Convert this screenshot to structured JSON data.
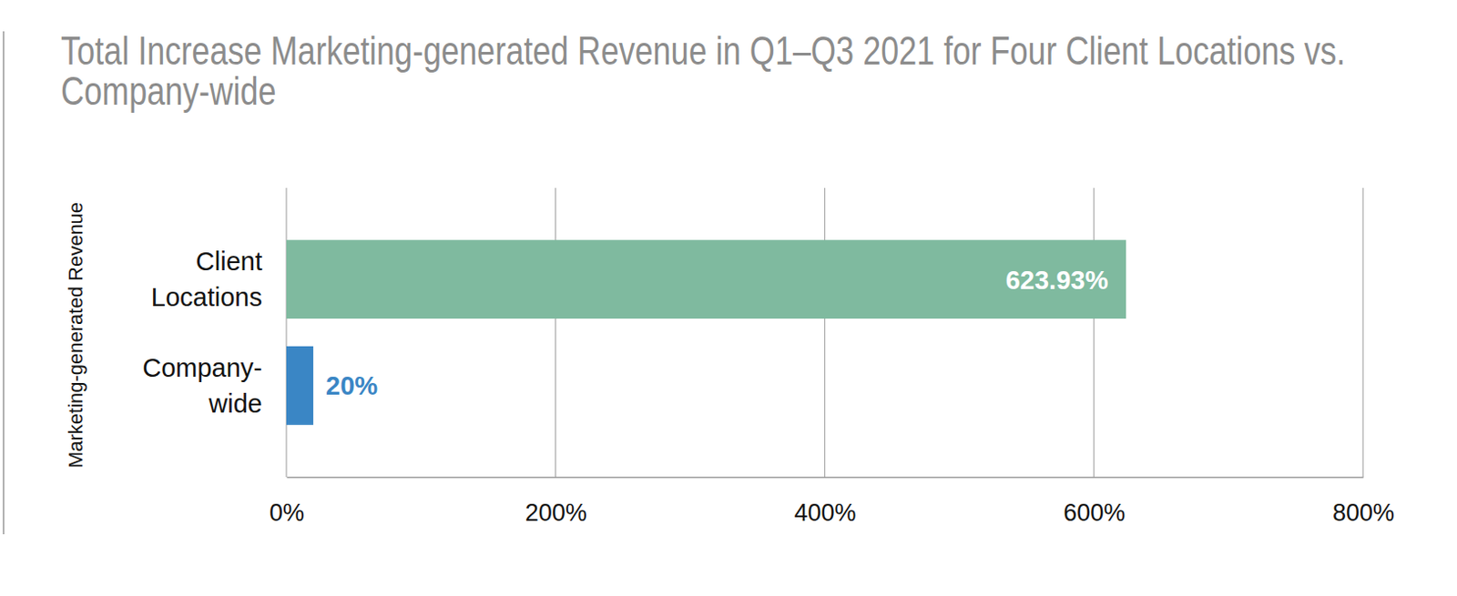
{
  "chart_data": {
    "type": "bar",
    "orientation": "horizontal",
    "title": "Total Increase Marketing-generated Revenue in Q1–Q3 2021 for Four Client Locations vs. Company-wide",
    "y_label": "Marketing-generated Revenue",
    "categories": [
      "Client Locations",
      "Company-wide"
    ],
    "values": [
      623.93,
      20
    ],
    "value_labels": [
      "623.93%",
      "20%"
    ],
    "colors": [
      "#7fba9f",
      "#3a86c5"
    ],
    "xlim": [
      0,
      800
    ],
    "xticks": [
      {
        "value": 0,
        "label": "0%"
      },
      {
        "value": 200,
        "label": "200%"
      },
      {
        "value": 400,
        "label": "400%"
      },
      {
        "value": 600,
        "label": "600%"
      },
      {
        "value": 800,
        "label": "800%"
      }
    ],
    "grid": true,
    "data_labels": true
  }
}
